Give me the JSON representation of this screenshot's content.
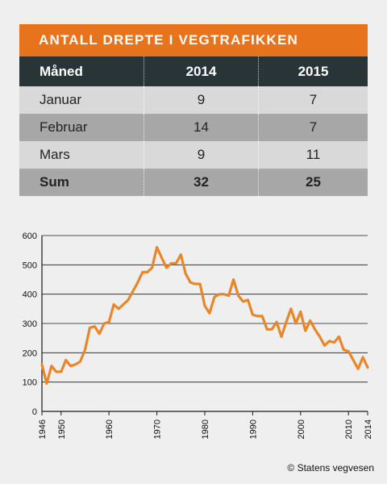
{
  "table": {
    "title": "ANTALL DREPTE I VEGTRAFIKKEN",
    "headers": [
      "Måned",
      "2014",
      "2015"
    ],
    "rows": [
      [
        "Januar",
        "9",
        "7"
      ],
      [
        "Februar",
        "14",
        "7"
      ],
      [
        "Mars",
        "9",
        "11"
      ],
      [
        "Sum",
        "32",
        "25"
      ]
    ],
    "colors": {
      "title_bg": "#e8731d",
      "header_bg": "#293436",
      "row_light": "#d9d9d9",
      "row_dark": "#a7a7a7"
    }
  },
  "chart_data": {
    "type": "line",
    "title": "",
    "xlabel": "",
    "ylabel": "",
    "xlim": [
      1946,
      2014
    ],
    "ylim": [
      0,
      600
    ],
    "x_ticks": [
      1946,
      1950,
      1960,
      1970,
      1980,
      1990,
      2000,
      2010,
      2014
    ],
    "y_ticks": [
      0,
      100,
      200,
      300,
      400,
      500,
      600
    ],
    "grid": "horizontal",
    "line_color": "#e8862a",
    "x": [
      1946,
      1947,
      1948,
      1949,
      1950,
      1951,
      1952,
      1953,
      1954,
      1955,
      1956,
      1957,
      1958,
      1959,
      1960,
      1961,
      1962,
      1963,
      1964,
      1965,
      1966,
      1967,
      1968,
      1969,
      1970,
      1971,
      1972,
      1973,
      1974,
      1975,
      1976,
      1977,
      1978,
      1979,
      1980,
      1981,
      1982,
      1983,
      1984,
      1985,
      1986,
      1987,
      1988,
      1989,
      1990,
      1991,
      1992,
      1993,
      1994,
      1995,
      1996,
      1997,
      1998,
      1999,
      2000,
      2001,
      2002,
      2003,
      2004,
      2005,
      2006,
      2007,
      2008,
      2009,
      2010,
      2011,
      2012,
      2013,
      2014
    ],
    "values": [
      160,
      95,
      155,
      135,
      135,
      175,
      155,
      160,
      170,
      210,
      285,
      290,
      265,
      300,
      305,
      365,
      350,
      365,
      380,
      410,
      440,
      475,
      475,
      490,
      560,
      525,
      490,
      505,
      505,
      535,
      470,
      440,
      435,
      435,
      360,
      335,
      390,
      400,
      400,
      395,
      450,
      395,
      375,
      380,
      330,
      325,
      325,
      280,
      280,
      305,
      255,
      305,
      350,
      300,
      340,
      275,
      310,
      280,
      255,
      225,
      240,
      235,
      255,
      210,
      205,
      175,
      145,
      185,
      150
    ]
  },
  "copyright": "© Statens vegvesen"
}
